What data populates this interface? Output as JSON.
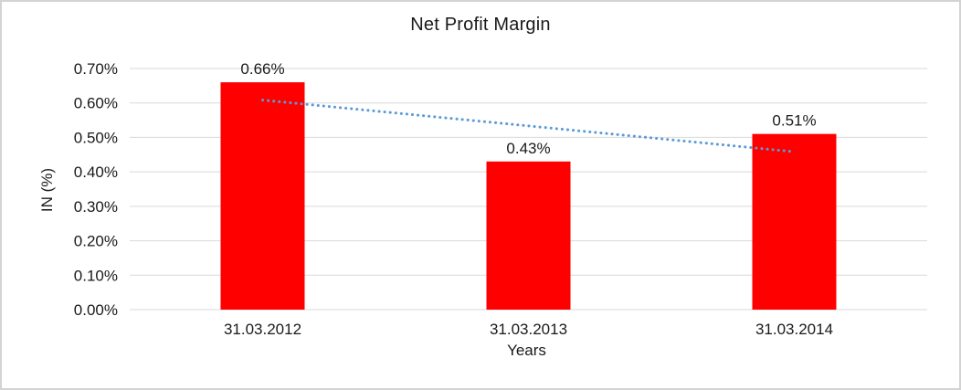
{
  "chart_data": {
    "type": "bar",
    "title": "Net Profit Margin",
    "xlabel": "Years",
    "ylabel": "IN (%)",
    "categories": [
      "31.03.2012",
      "31.03.2013",
      "31.03.2014"
    ],
    "values": [
      0.66,
      0.43,
      0.51
    ],
    "data_labels": [
      "0.66%",
      "0.43%",
      "0.51%"
    ],
    "unit": "%",
    "ylim": [
      0,
      0.7
    ],
    "ytick_step": 0.1,
    "yticks": [
      "0.00%",
      "0.10%",
      "0.20%",
      "0.30%",
      "0.40%",
      "0.50%",
      "0.60%",
      "0.70%"
    ],
    "grid": true,
    "legend": "none",
    "trendline": {
      "type": "linear",
      "style": "dotted"
    },
    "colors": {
      "bar": "#FF0000",
      "trendline": "#5B9BD5",
      "gridline": "#D9D9D9",
      "text": "#1A1A1A",
      "background": "#FFFFFF",
      "border": "#D3D3D3"
    }
  }
}
